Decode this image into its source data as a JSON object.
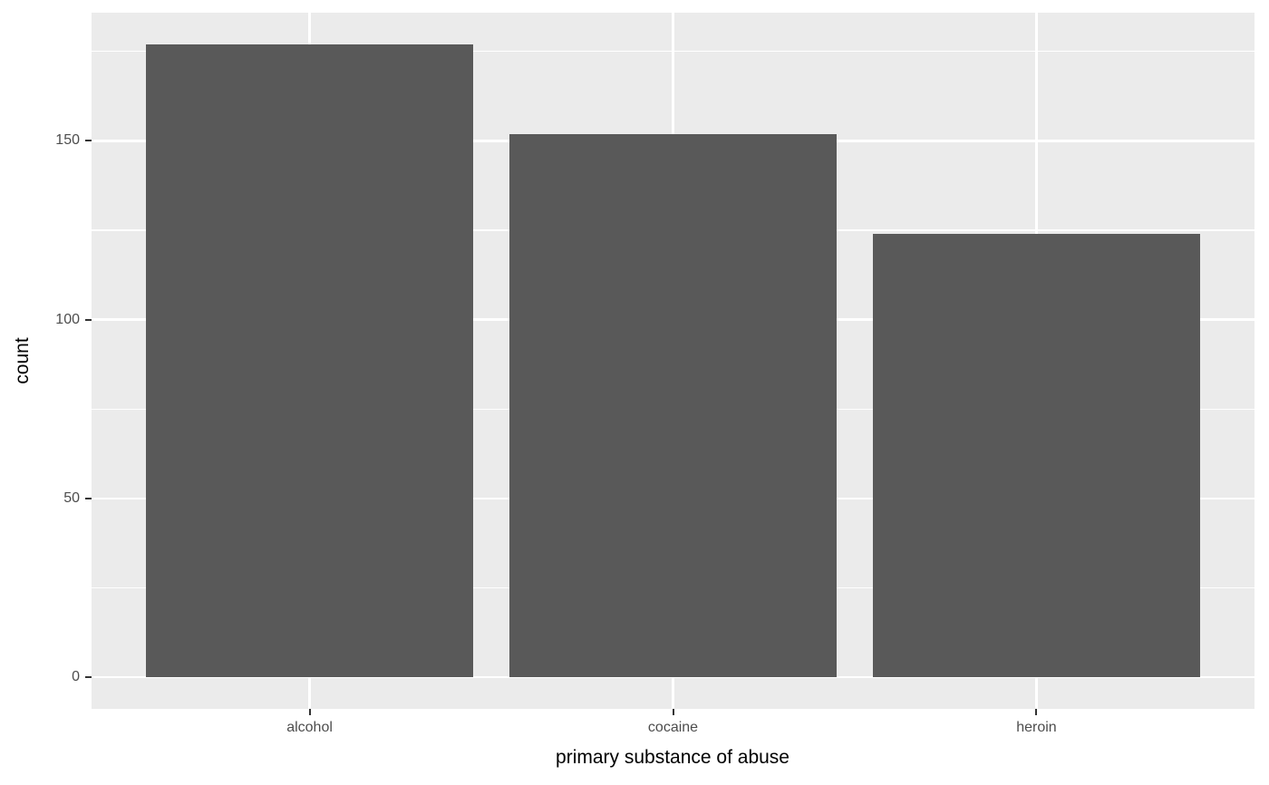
{
  "chart_data": {
    "type": "bar",
    "categories": [
      "alcohol",
      "cocaine",
      "heroin"
    ],
    "values": [
      177,
      152,
      124
    ],
    "title": "",
    "xlabel": "primary substance of abuse",
    "ylabel": "count",
    "ylim": [
      -8.85,
      185.85
    ],
    "yticks": [
      0,
      50,
      100,
      150
    ],
    "yticks_minor": [
      25,
      75,
      125,
      175
    ],
    "grid": "major+minor horizontal white, major vertical white at category centers",
    "legend": "none",
    "bar_width_fraction": 0.9,
    "discrete_expand": 0.6
  },
  "style": {
    "page_bg": "#FFFFFF",
    "panel_bg": "#EBEBEB",
    "bar_fill": "#595959",
    "grid_color": "#FFFFFF",
    "tick_label_color": "#4D4D4D",
    "tick_mark_color": "#333333",
    "axis_title_color": "#000000"
  }
}
